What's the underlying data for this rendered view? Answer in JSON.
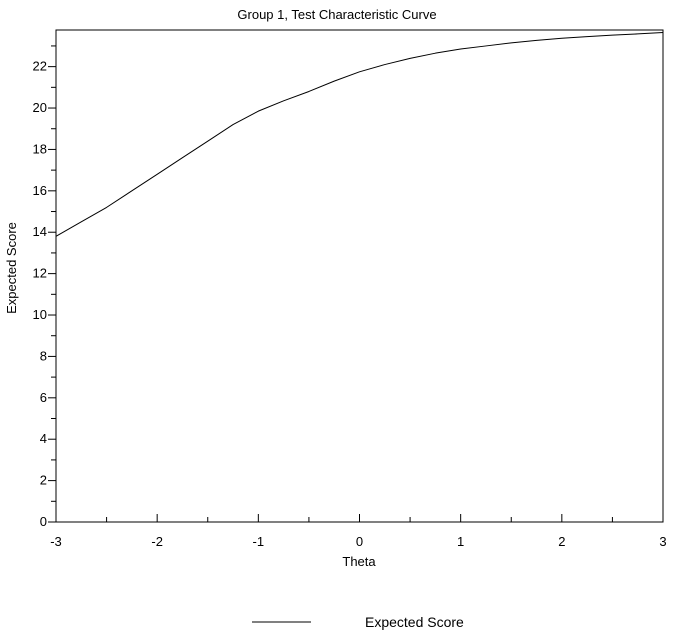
{
  "page": {
    "background": "#ffffff",
    "foreground": "#000000"
  },
  "chart_data": {
    "type": "line",
    "title": "Group 1, Test Characteristic Curve",
    "xlabel": "Theta",
    "ylabel": "Expected Score",
    "xlim": [
      -3,
      3
    ],
    "ylim": [
      0,
      23.77
    ],
    "grid": false,
    "line_color": "#000000",
    "x_major_ticks": [
      -3,
      -2,
      -1,
      0,
      1,
      2,
      3
    ],
    "x_major_tick_labels": [
      "-3",
      "-2",
      "-1",
      "0",
      "1",
      "2",
      "3"
    ],
    "x_minor_ticks": [
      -2.5,
      -1.5,
      -0.5,
      0.5,
      1.5,
      2.5
    ],
    "y_major_ticks": [
      0,
      2,
      4,
      6,
      8,
      10,
      12,
      14,
      16,
      18,
      20,
      22
    ],
    "y_major_tick_labels": [
      "0",
      "2",
      "4",
      "6",
      "8",
      "10",
      "12",
      "14",
      "16",
      "18",
      "20",
      "22"
    ],
    "y_minor_ticks": [
      1,
      3,
      5,
      7,
      9,
      11,
      13,
      15,
      17,
      19,
      21,
      23
    ],
    "series": [
      {
        "name": "Expected Score",
        "x": [
          -3,
          -2.75,
          -2.5,
          -2.25,
          -2,
          -1.75,
          -1.5,
          -1.25,
          -1,
          -0.75,
          -0.5,
          -0.25,
          0,
          0.25,
          0.5,
          0.75,
          1,
          1.25,
          1.5,
          1.75,
          2,
          2.25,
          2.5,
          2.75,
          3
        ],
        "y": [
          13.8,
          14.5,
          15.2,
          16.0,
          16.8,
          17.6,
          18.4,
          19.2,
          19.85,
          20.35,
          20.8,
          21.3,
          21.75,
          22.1,
          22.4,
          22.65,
          22.85,
          23.0,
          23.15,
          23.27,
          23.37,
          23.45,
          23.52,
          23.58,
          23.65
        ]
      }
    ],
    "legend": {
      "position": "bottom",
      "entries": [
        "Expected Score"
      ]
    }
  }
}
